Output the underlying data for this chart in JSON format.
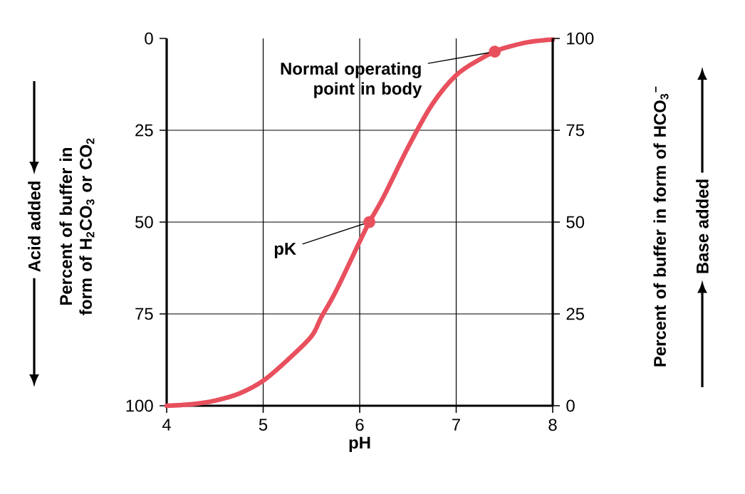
{
  "chart_data": {
    "type": "line",
    "xlabel": "pH",
    "ylabel": "Percent of buffer in form of H$_{2}$CO$_{3}$ or CO$_{2}$",
    "y2label": "Percent of buffer in form of HCO$_{3}$$^{−}$",
    "xlim": [
      4,
      8
    ],
    "xticks": [
      4,
      5,
      6,
      7,
      8
    ],
    "ylim": [
      100,
      0
    ],
    "yticks": [
      0,
      25,
      50,
      75,
      100
    ],
    "y2lim": [
      0,
      100
    ],
    "y2ticks": [
      0,
      25,
      50,
      75,
      100
    ],
    "grid": true,
    "series": [
      {
        "color": "#e8505e",
        "x": [
          4,
          4.25,
          4.5,
          4.75,
          5,
          5.25,
          5.5,
          5.6,
          5.75,
          6,
          6.1,
          6.25,
          6.5,
          6.75,
          7,
          7.25,
          7.4,
          7.5,
          7.75,
          8
        ],
        "values": [
          100,
          99.6,
          98.6,
          96.7,
          93.2,
          87.6,
          81.1,
          76,
          69,
          55.3,
          50,
          43,
          29.7,
          18,
          10,
          5.6,
          3.6,
          2.6,
          1,
          0.3
        ]
      },
      {
        "type": "scatter",
        "color": "#e8505e",
        "marker": "circle",
        "x": [
          6.1,
          7.4
        ],
        "values": [
          50,
          3.6
        ]
      }
    ],
    "annotations": [
      "Acid added",
      "Base added",
      {
        "text": "Normal operating point in body",
        "x": 7.4,
        "y": 3.6
      },
      {
        "text": "pK",
        "x": 6.1,
        "y": 50
      }
    ]
  }
}
